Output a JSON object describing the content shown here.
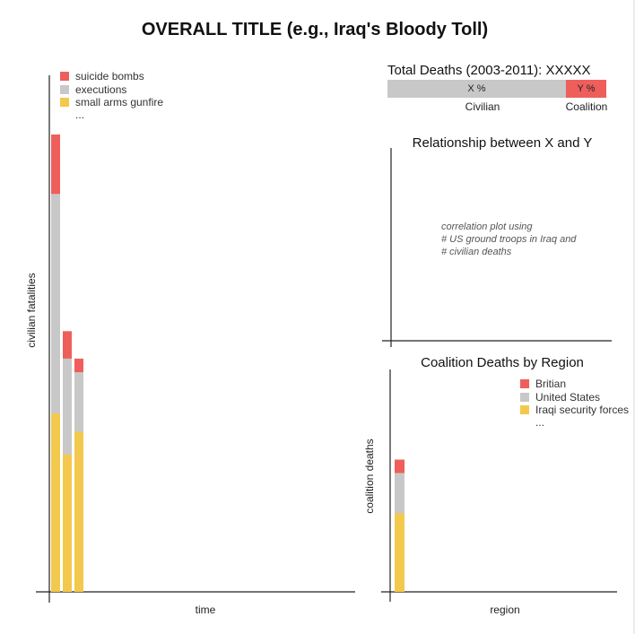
{
  "title": "OVERALL TITLE (e.g., Iraq's Bloody Toll)",
  "colors": {
    "red": "#ee5f5b",
    "gray": "#c8c8c8",
    "yellow": "#f2c94c",
    "axis": "#222222"
  },
  "left_chart": {
    "xlabel": "time",
    "ylabel": "civilian fatalities",
    "legend": [
      {
        "label": "suicide bombs",
        "color": "#ee5f5b"
      },
      {
        "label": "executions",
        "color": "#c8c8c8"
      },
      {
        "label": "small arms gunfire",
        "color": "#f2c94c"
      }
    ],
    "legend_more": "..."
  },
  "totals": {
    "title": "Total Deaths (2003-2011): XXXXX",
    "civilian_text": "X %",
    "coalition_text": "Y %",
    "civilian_label": "Civilian",
    "coalition_label": "Coalition",
    "civilian_share": 0.815
  },
  "scatter": {
    "title": "Relationship between X and Y",
    "note_lines": [
      "correlation plot using",
      "# US ground troops in Iraq and",
      "# civilian deaths"
    ]
  },
  "coalition_chart": {
    "title": "Coalition Deaths by Region",
    "xlabel": "region",
    "ylabel": "coalition deaths",
    "legend": [
      {
        "label": "Britian",
        "color": "#ee5f5b"
      },
      {
        "label": "United States",
        "color": "#c8c8c8"
      },
      {
        "label": "Iraqi security forces",
        "color": "#f2c94c"
      }
    ],
    "legend_more": "..."
  },
  "chart_data": [
    {
      "type": "bar",
      "stacked": true,
      "xlabel": "time",
      "ylabel": "civilian fatalities",
      "categories": [
        "",
        "",
        ""
      ],
      "ylim": [
        0,
        100
      ],
      "series": [
        {
          "name": "small arms gunfire",
          "color": "#f2c94c",
          "values": [
            39,
            30,
            35
          ]
        },
        {
          "name": "executions",
          "color": "#c8c8c8",
          "values": [
            48,
            21,
            13
          ]
        },
        {
          "name": "suicide bombs",
          "color": "#ee5f5b",
          "values": [
            13,
            6,
            3
          ]
        }
      ]
    },
    {
      "type": "bar",
      "stacked": true,
      "title": "Total Deaths (2003-2011): XXXXX",
      "categories": [
        "Civilian",
        "Coalition"
      ],
      "values_text": [
        "X %",
        "Y %"
      ]
    },
    {
      "type": "scatter",
      "title": "Relationship between X and Y",
      "x": [],
      "y": []
    },
    {
      "type": "bar",
      "stacked": true,
      "title": "Coalition Deaths by Region",
      "xlabel": "region",
      "ylabel": "coalition deaths",
      "categories": [
        ""
      ],
      "ylim": [
        0,
        100
      ],
      "series": [
        {
          "name": "Iraqi security forces",
          "color": "#f2c94c",
          "values": [
            35
          ]
        },
        {
          "name": "United States",
          "color": "#c8c8c8",
          "values": [
            18
          ]
        },
        {
          "name": "Britian",
          "color": "#ee5f5b",
          "values": [
            6
          ]
        }
      ]
    }
  ]
}
